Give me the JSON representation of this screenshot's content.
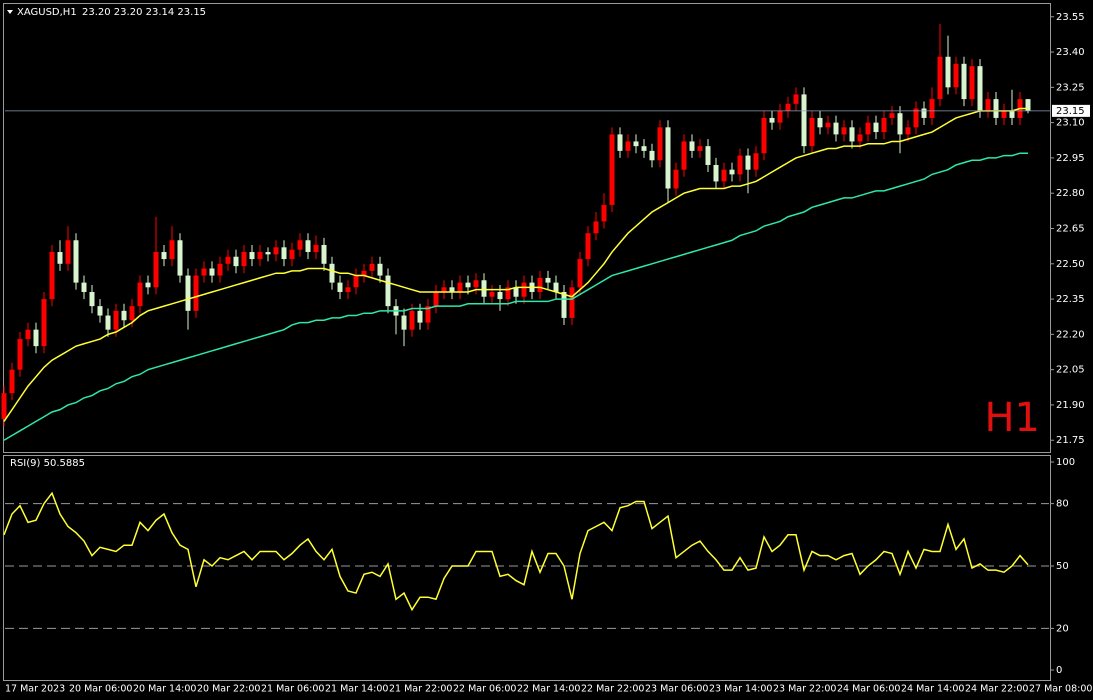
{
  "chart_data": [
    {
      "type": "candlestick",
      "title": "XAGUSD,H1",
      "quote": "23.20 23.20 23.14 23.15",
      "watermark": "H1",
      "categories": [
        "17 Mar 2023",
        null,
        null,
        null,
        null,
        null,
        null,
        null,
        "20 Mar 06:00",
        null,
        null,
        null,
        null,
        null,
        null,
        null,
        "20 Mar 14:00",
        null,
        null,
        null,
        null,
        null,
        null,
        null,
        "20 Mar 22:00",
        null,
        null,
        null,
        null,
        null,
        null,
        null,
        "21 Mar 06:00",
        null,
        null,
        null,
        null,
        null,
        null,
        null,
        "21 Mar 14:00",
        null,
        null,
        null,
        null,
        null,
        null,
        null,
        "21 Mar 22:00",
        null,
        null,
        null,
        null,
        null,
        null,
        null,
        "22 Mar 06:00",
        null,
        null,
        null,
        null,
        null,
        null,
        null,
        "22 Mar 14:00",
        null,
        null,
        null,
        null,
        null,
        null,
        null,
        "22 Mar 22:00",
        null,
        null,
        null,
        null,
        null,
        null,
        null,
        "23 Mar 06:00",
        null,
        null,
        null,
        null,
        null,
        null,
        null,
        "23 Mar 14:00",
        null,
        null,
        null,
        null,
        null,
        null,
        null,
        "23 Mar 22:00",
        null,
        null,
        null,
        null,
        null,
        null,
        null,
        "24 Mar 06:00",
        null,
        null,
        null,
        null,
        null,
        null,
        null,
        "24 Mar 14:00",
        null,
        null,
        null,
        null,
        null,
        null,
        null,
        "24 Mar 22:00",
        null,
        null,
        null,
        null,
        null,
        null,
        null,
        "27 Mar 08:00"
      ],
      "open": [
        21.84,
        21.95,
        22.05,
        22.18,
        22.22,
        22.15,
        22.35,
        22.55,
        22.5,
        22.6,
        22.42,
        22.38,
        22.32,
        22.28,
        22.22,
        22.3,
        22.26,
        22.32,
        22.42,
        22.4,
        22.55,
        22.52,
        22.6,
        22.45,
        22.3,
        22.45,
        22.48,
        22.45,
        22.5,
        22.53,
        22.49,
        22.55,
        22.52,
        22.55,
        22.54,
        22.57,
        22.52,
        22.56,
        22.6,
        22.55,
        22.58,
        22.5,
        22.42,
        22.38,
        22.4,
        22.45,
        22.47,
        22.5,
        22.45,
        22.32,
        22.28,
        22.22,
        22.3,
        22.25,
        22.32,
        22.38,
        22.4,
        22.38,
        22.42,
        22.4,
        22.43,
        22.36,
        22.38,
        22.35,
        22.4,
        22.36,
        22.42,
        22.38,
        22.44,
        22.42,
        22.38,
        22.27,
        22.4,
        22.52,
        22.63,
        22.68,
        22.75,
        23.05,
        22.98,
        23.02,
        23.0,
        22.98,
        22.94,
        23.08,
        22.82,
        22.9,
        23.02,
        22.98,
        23.0,
        22.92,
        22.85,
        22.9,
        22.88,
        22.96,
        22.9,
        22.97,
        23.12,
        23.1,
        23.15,
        23.18,
        23.22,
        23.0,
        23.12,
        23.08,
        23.1,
        23.05,
        23.08,
        23.02,
        23.05,
        23.1,
        23.06,
        23.12,
        23.14,
        23.05,
        23.08,
        23.16,
        23.12,
        23.2,
        23.38,
        23.25,
        23.35,
        23.2,
        23.34,
        23.15,
        23.2,
        23.12,
        23.15,
        23.12,
        23.2
      ],
      "high": [
        21.98,
        22.08,
        22.21,
        22.25,
        22.25,
        22.38,
        22.58,
        22.6,
        22.66,
        22.63,
        22.45,
        22.41,
        22.35,
        22.31,
        22.33,
        22.33,
        22.35,
        22.45,
        22.45,
        22.7,
        22.58,
        22.66,
        22.63,
        22.48,
        22.48,
        22.51,
        22.51,
        22.53,
        22.56,
        22.56,
        22.58,
        22.58,
        22.58,
        22.57,
        22.6,
        22.6,
        22.59,
        22.63,
        22.63,
        22.62,
        22.61,
        22.53,
        22.45,
        22.43,
        22.48,
        22.5,
        22.53,
        22.53,
        22.48,
        22.35,
        22.31,
        22.33,
        22.33,
        22.35,
        22.41,
        22.43,
        22.43,
        22.45,
        22.45,
        22.46,
        22.46,
        22.41,
        22.41,
        22.43,
        22.43,
        22.45,
        22.45,
        22.47,
        22.47,
        22.45,
        22.41,
        22.43,
        22.55,
        22.66,
        22.72,
        22.8,
        23.08,
        23.08,
        23.05,
        23.05,
        23.03,
        23.01,
        23.11,
        23.11,
        22.93,
        23.05,
        23.05,
        23.03,
        23.03,
        22.95,
        22.93,
        22.93,
        22.99,
        22.99,
        23.0,
        23.15,
        23.15,
        23.18,
        23.21,
        23.25,
        23.25,
        23.15,
        23.15,
        23.13,
        23.13,
        23.11,
        23.11,
        23.08,
        23.13,
        23.13,
        23.15,
        23.17,
        23.17,
        23.11,
        23.19,
        23.19,
        23.25,
        23.52,
        23.47,
        23.38,
        23.38,
        23.37,
        23.37,
        23.23,
        23.23,
        23.18,
        23.24,
        23.23,
        23.2
      ],
      "low": [
        21.81,
        21.92,
        22.02,
        22.15,
        22.12,
        22.12,
        22.32,
        22.47,
        22.47,
        22.39,
        22.35,
        22.29,
        22.25,
        22.19,
        22.19,
        22.23,
        22.23,
        22.29,
        22.37,
        22.37,
        22.49,
        22.49,
        22.42,
        22.22,
        22.27,
        22.42,
        22.42,
        22.42,
        22.47,
        22.46,
        22.46,
        22.49,
        22.49,
        22.51,
        22.51,
        22.49,
        22.49,
        22.53,
        22.52,
        22.52,
        22.47,
        22.39,
        22.35,
        22.35,
        22.37,
        22.42,
        22.44,
        22.42,
        22.29,
        22.2,
        22.15,
        22.19,
        22.22,
        22.22,
        22.29,
        22.35,
        22.35,
        22.35,
        22.37,
        22.37,
        22.33,
        22.33,
        22.3,
        22.32,
        22.33,
        22.33,
        22.35,
        22.35,
        22.39,
        22.35,
        22.24,
        22.24,
        22.37,
        22.49,
        22.6,
        22.65,
        22.72,
        22.95,
        22.95,
        22.97,
        22.95,
        22.91,
        22.91,
        22.76,
        22.79,
        22.87,
        22.95,
        22.95,
        22.89,
        22.82,
        22.82,
        22.85,
        22.85,
        22.8,
        22.87,
        22.94,
        23.07,
        23.07,
        23.12,
        23.15,
        22.97,
        22.97,
        23.05,
        23.05,
        23.02,
        23.02,
        22.99,
        22.99,
        23.02,
        23.03,
        23.03,
        23.09,
        22.97,
        23.02,
        23.05,
        23.09,
        23.09,
        23.17,
        23.22,
        23.22,
        23.17,
        23.17,
        23.12,
        23.12,
        23.09,
        23.09,
        23.09,
        23.09,
        23.14
      ],
      "close": [
        21.95,
        22.05,
        22.18,
        22.22,
        22.15,
        22.35,
        22.55,
        22.5,
        22.6,
        22.42,
        22.38,
        22.32,
        22.28,
        22.22,
        22.3,
        22.26,
        22.32,
        22.42,
        22.4,
        22.55,
        22.52,
        22.6,
        22.45,
        22.3,
        22.45,
        22.48,
        22.45,
        22.5,
        22.53,
        22.49,
        22.55,
        22.52,
        22.55,
        22.54,
        22.57,
        22.52,
        22.56,
        22.6,
        22.55,
        22.58,
        22.5,
        22.42,
        22.38,
        22.4,
        22.45,
        22.47,
        22.5,
        22.45,
        22.32,
        22.28,
        22.22,
        22.3,
        22.25,
        22.32,
        22.38,
        22.4,
        22.38,
        22.42,
        22.4,
        22.43,
        22.36,
        22.38,
        22.35,
        22.4,
        22.36,
        22.42,
        22.38,
        22.44,
        22.42,
        22.38,
        22.27,
        22.4,
        22.52,
        22.63,
        22.68,
        22.75,
        23.05,
        22.98,
        23.02,
        23.0,
        22.98,
        22.94,
        23.08,
        22.82,
        22.9,
        23.02,
        22.98,
        23.0,
        22.92,
        22.85,
        22.9,
        22.88,
        22.96,
        22.9,
        22.97,
        23.12,
        23.1,
        23.15,
        23.18,
        23.22,
        23.0,
        23.12,
        23.08,
        23.1,
        23.05,
        23.08,
        23.02,
        23.05,
        23.1,
        23.06,
        23.12,
        23.14,
        23.05,
        23.08,
        23.16,
        23.12,
        23.2,
        23.38,
        23.25,
        23.35,
        23.2,
        23.34,
        23.15,
        23.2,
        23.12,
        23.15,
        23.12,
        23.2,
        23.15
      ],
      "up_color": "#ff0000",
      "down_color": "#d8f5d0",
      "series": [
        {
          "type": "line",
          "color": "#ffff33",
          "values": [
            21.83,
            21.88,
            21.93,
            21.98,
            22.02,
            22.06,
            22.09,
            22.11,
            22.13,
            22.15,
            22.16,
            22.17,
            22.18,
            22.2,
            22.21,
            22.23,
            22.25,
            22.28,
            22.3,
            22.31,
            22.32,
            22.33,
            22.34,
            22.35,
            22.36,
            22.37,
            22.38,
            22.39,
            22.4,
            22.41,
            22.42,
            22.43,
            22.44,
            22.45,
            22.46,
            22.46,
            22.47,
            22.47,
            22.48,
            22.48,
            22.48,
            22.47,
            22.46,
            22.46,
            22.45,
            22.45,
            22.44,
            22.43,
            22.42,
            22.41,
            22.4,
            22.39,
            22.38,
            22.38,
            22.38,
            22.38,
            22.38,
            22.38,
            22.38,
            22.39,
            22.39,
            22.39,
            22.39,
            22.39,
            22.4,
            22.4,
            22.4,
            22.4,
            22.39,
            22.38,
            22.37,
            22.36,
            22.39,
            22.42,
            22.46,
            22.5,
            22.55,
            22.59,
            22.63,
            22.66,
            22.69,
            22.72,
            22.74,
            22.76,
            22.78,
            22.8,
            22.81,
            22.82,
            22.82,
            22.82,
            22.82,
            22.83,
            22.83,
            22.84,
            22.85,
            22.87,
            22.89,
            22.91,
            22.93,
            22.95,
            22.96,
            22.97,
            22.98,
            22.99,
            22.99,
            23.0,
            23.0,
            23.0,
            23.01,
            23.01,
            23.01,
            23.02,
            23.02,
            23.03,
            23.04,
            23.05,
            23.06,
            23.08,
            23.1,
            23.12,
            23.13,
            23.14,
            23.15,
            23.15,
            23.15,
            23.15,
            23.15,
            23.16,
            23.16
          ]
        },
        {
          "type": "line",
          "color": "#2ee8a8",
          "values": [
            21.75,
            21.77,
            21.79,
            21.81,
            21.83,
            21.85,
            21.87,
            21.88,
            21.9,
            21.91,
            21.93,
            21.94,
            21.96,
            21.97,
            21.99,
            22.0,
            22.02,
            22.03,
            22.05,
            22.06,
            22.07,
            22.08,
            22.09,
            22.1,
            22.11,
            22.12,
            22.13,
            22.14,
            22.15,
            22.16,
            22.17,
            22.18,
            22.19,
            22.2,
            22.21,
            22.22,
            22.24,
            22.25,
            22.25,
            22.26,
            22.26,
            22.27,
            22.27,
            22.28,
            22.28,
            22.29,
            22.29,
            22.3,
            22.3,
            22.3,
            22.3,
            22.31,
            22.31,
            22.31,
            22.32,
            22.32,
            22.32,
            22.32,
            22.33,
            22.33,
            22.33,
            22.33,
            22.33,
            22.33,
            22.34,
            22.34,
            22.34,
            22.34,
            22.34,
            22.35,
            22.35,
            22.35,
            22.37,
            22.39,
            22.41,
            22.43,
            22.45,
            22.46,
            22.47,
            22.48,
            22.49,
            22.5,
            22.51,
            22.52,
            22.53,
            22.54,
            22.55,
            22.56,
            22.57,
            22.58,
            22.59,
            22.6,
            22.62,
            22.63,
            22.64,
            22.66,
            22.67,
            22.68,
            22.7,
            22.71,
            22.72,
            22.74,
            22.75,
            22.76,
            22.77,
            22.78,
            22.78,
            22.79,
            22.8,
            22.81,
            22.81,
            22.82,
            22.83,
            22.84,
            22.85,
            22.86,
            22.88,
            22.89,
            22.9,
            22.92,
            22.93,
            22.94,
            22.94,
            22.95,
            22.95,
            22.96,
            22.96,
            22.97,
            22.97
          ]
        }
      ],
      "last_price": 23.15,
      "ylim": [
        21.7,
        23.6
      ],
      "yticks": [
        {
          "value": 21.75,
          "label": "21.75"
        },
        {
          "value": 21.9,
          "label": "21.90"
        },
        22.05,
        {
          "value": 22.2,
          "label": "22.20"
        },
        22.35,
        {
          "value": 22.5,
          "label": "22.50"
        },
        22.65,
        {
          "value": 22.8,
          "label": "22.80"
        },
        22.95,
        {
          "value": 23.1,
          "label": "23.10"
        },
        23.25,
        {
          "value": 23.4,
          "label": "23.40"
        },
        23.55
      ]
    },
    {
      "type": "line",
      "title": "RSI(9) 50.5885",
      "color": "#ffff33",
      "values": [
        65,
        75,
        79,
        71,
        72,
        80,
        85,
        75,
        69,
        66,
        62,
        55,
        59,
        58,
        57,
        60,
        60,
        71,
        67,
        72,
        75,
        66,
        60,
        58,
        40,
        53,
        50,
        54,
        53,
        55,
        57,
        53,
        57,
        57,
        57,
        53,
        56,
        60,
        63,
        57,
        53,
        58,
        45,
        38,
        37,
        46,
        47,
        45,
        51,
        34,
        37,
        29,
        35,
        35,
        34,
        44,
        50,
        50,
        50,
        57,
        57,
        57,
        45,
        46,
        43,
        41,
        57,
        47,
        56,
        56,
        50,
        34,
        56,
        67,
        69,
        71,
        67,
        78,
        79,
        81,
        81,
        68,
        71,
        74,
        54,
        57,
        60,
        62,
        57,
        53,
        48,
        48,
        54,
        48,
        49,
        64,
        57,
        60,
        65,
        65,
        48,
        57,
        55,
        55,
        53,
        55,
        56,
        46,
        50,
        53,
        57,
        56,
        46,
        57,
        49,
        58,
        57,
        57,
        70,
        58,
        63,
        49,
        51,
        48,
        48,
        47,
        50,
        55,
        50.59
      ],
      "ylim": [
        0,
        100
      ],
      "yticks": [
        0,
        20,
        50,
        80,
        100
      ]
    }
  ]
}
